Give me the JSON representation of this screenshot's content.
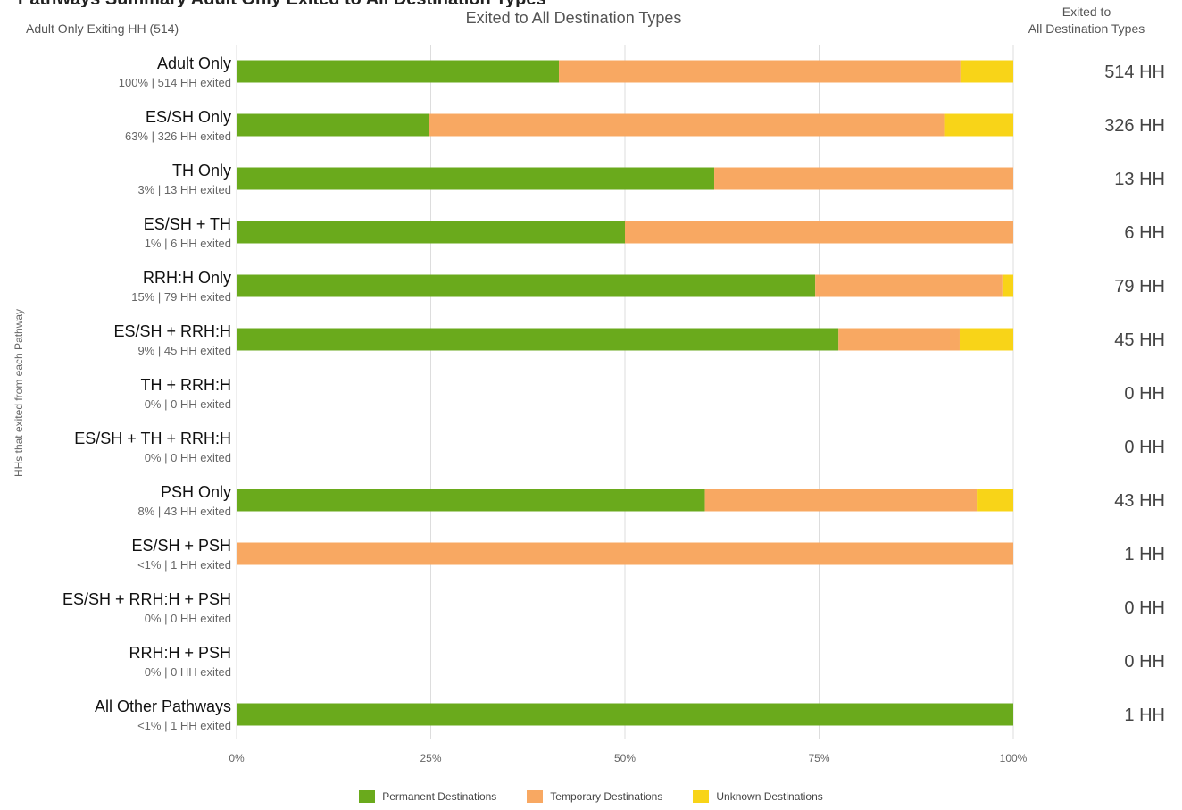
{
  "header": {
    "top_title": "Pathways Summary Adult Only Exited to All Destination Types",
    "left_subtitle": "Adult Only Exiting HH (514)",
    "center_subtitle": "Exited to All Destination Types",
    "right_header_line1": "Exited to",
    "right_header_line2": "All Destination Types"
  },
  "colors": {
    "permanent": "#6aaa1c",
    "temporary": "#f8a862",
    "unknown": "#f8d418",
    "grid": "#dddddd"
  },
  "chart_data": {
    "type": "bar",
    "orientation": "horizontal",
    "stacked": true,
    "ylabel": "HHs that exited from each Pathway",
    "x_ticks": [
      "0%",
      "25%",
      "50%",
      "75%",
      "100%"
    ],
    "xlim": [
      0,
      100
    ],
    "legend_position": "bottom",
    "grid": true,
    "categories": [
      {
        "label": "Adult Only",
        "sub": "100% | 514 HH exited",
        "total": "514 HH"
      },
      {
        "label": "ES/SH Only",
        "sub": "63% | 326 HH exited",
        "total": "326 HH"
      },
      {
        "label": "TH Only",
        "sub": "3% | 13 HH exited",
        "total": "13 HH"
      },
      {
        "label": "ES/SH + TH",
        "sub": "1% | 6 HH exited",
        "total": "6 HH"
      },
      {
        "label": "RRH:H Only",
        "sub": "15% | 79 HH exited",
        "total": "79 HH"
      },
      {
        "label": "ES/SH + RRH:H",
        "sub": "9% | 45 HH exited",
        "total": "45 HH"
      },
      {
        "label": "TH + RRH:H",
        "sub": "0% | 0 HH exited",
        "total": "0 HH"
      },
      {
        "label": "ES/SH + TH + RRH:H",
        "sub": "0% | 0 HH exited",
        "total": "0 HH"
      },
      {
        "label": "PSH Only",
        "sub": "8% | 43 HH exited",
        "total": "43 HH"
      },
      {
        "label": "ES/SH + PSH",
        "sub": "<1% | 1 HH exited",
        "total": "1 HH"
      },
      {
        "label": "ES/SH + RRH:H + PSH",
        "sub": "0% | 0 HH exited",
        "total": "0 HH"
      },
      {
        "label": "RRH:H + PSH",
        "sub": "0% | 0 HH exited",
        "total": "0 HH"
      },
      {
        "label": "All Other Pathways",
        "sub": "<1% | 1 HH exited",
        "total": "1 HH"
      }
    ],
    "series": [
      {
        "name": "Permanent Destinations",
        "color": "#6aaa1c",
        "values": [
          41.5,
          24.8,
          61.5,
          50.0,
          74.5,
          77.5,
          0,
          0,
          60.3,
          0,
          0,
          0,
          100
        ]
      },
      {
        "name": "Temporary Destinations",
        "color": "#f8a862",
        "values": [
          51.7,
          66.3,
          38.5,
          50.0,
          24.1,
          15.6,
          0,
          0,
          35.0,
          100,
          0,
          0,
          0
        ]
      },
      {
        "name": "Unknown Destinations",
        "color": "#f8d418",
        "values": [
          6.8,
          8.9,
          0,
          0,
          1.4,
          6.9,
          0,
          0,
          4.7,
          0,
          0,
          0,
          0
        ]
      }
    ]
  }
}
